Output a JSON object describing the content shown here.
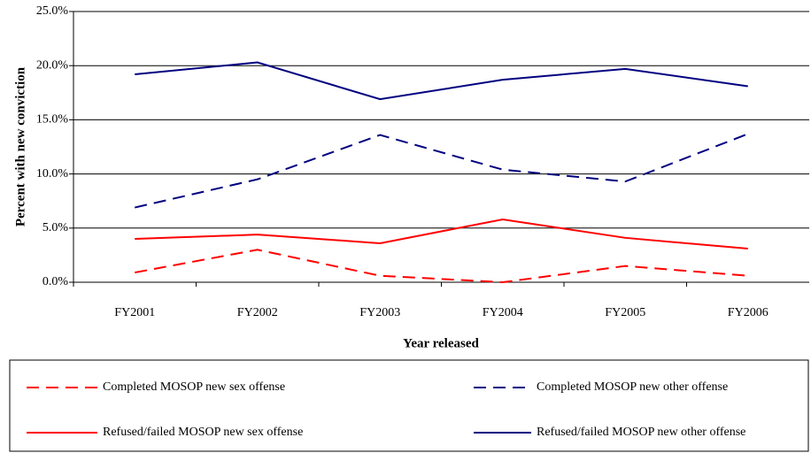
{
  "chart_data": {
    "type": "line",
    "y_label": "Percent with new conviction",
    "x_label": "Year released",
    "categories": [
      "FY2001",
      "FY2002",
      "FY2003",
      "FY2004",
      "FY2005",
      "FY2006"
    ],
    "series": [
      {
        "name": "Completed MOSOP new sex offense",
        "color": "#ff0000",
        "dashed": true,
        "values": [
          0.9,
          3.0,
          0.6,
          0.0,
          1.5,
          0.6
        ]
      },
      {
        "name": "Completed MOSOP new other offense",
        "color": "#000080",
        "dashed": true,
        "values": [
          6.9,
          9.5,
          13.6,
          10.4,
          9.3,
          13.7
        ]
      },
      {
        "name": "Refused/failed MOSOP new sex offense",
        "color": "#ff0000",
        "dashed": false,
        "values": [
          4.0,
          4.4,
          3.6,
          5.8,
          4.1,
          3.1
        ]
      },
      {
        "name": "Refused/failed MOSOP new other offense",
        "color": "#000080",
        "dashed": false,
        "values": [
          19.2,
          20.3,
          16.9,
          18.7,
          19.7,
          18.1
        ]
      }
    ],
    "ylim": [
      0,
      25
    ],
    "yticks": [
      {
        "value": 0,
        "label": "0.0%"
      },
      {
        "value": 5,
        "label": "5.0%"
      },
      {
        "value": 10,
        "label": "10.0%"
      },
      {
        "value": 15,
        "label": "15.0%"
      },
      {
        "value": 20,
        "label": "20.0%"
      },
      {
        "value": 25,
        "label": "25.0%"
      }
    ],
    "grid": true
  }
}
